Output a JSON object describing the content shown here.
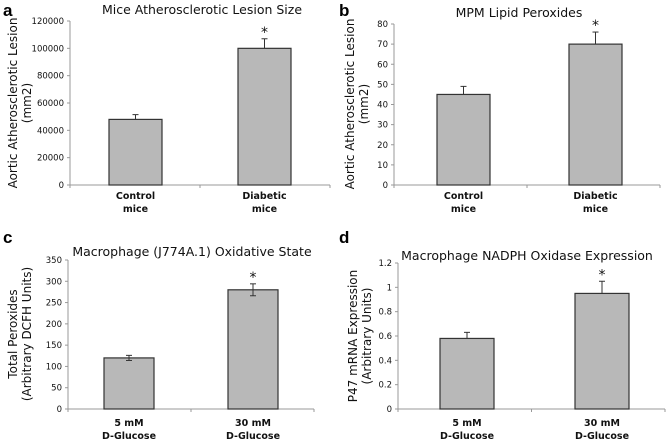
{
  "bar_color": "#b8b8b8",
  "bar_stroke": "#333333",
  "axis_color": "#999999",
  "chart_data": [
    {
      "type": "bar",
      "panel": "a",
      "title": "Mice Atherosclerotic Lesion Size",
      "ylabel_lines": [
        "Aortic Atherosclerotic Lesion",
        "(mm2)"
      ],
      "xlabel": "",
      "categories": [
        [
          "Control",
          "mice"
        ],
        [
          "Diabetic",
          "mice"
        ]
      ],
      "values": [
        48000,
        100000
      ],
      "errors": [
        3500,
        7000
      ],
      "error_style": "upper",
      "significance": [
        "",
        "*"
      ],
      "ylim": [
        0,
        120000
      ],
      "yticks": [
        0,
        20000,
        40000,
        60000,
        80000,
        100000,
        120000
      ],
      "ytick_labels": [
        "0",
        "20000",
        "40000",
        "60000",
        "80000",
        "100000",
        "120000"
      ],
      "grid": false
    },
    {
      "type": "bar",
      "panel": "b",
      "title": "MPM Lipid Peroxides",
      "ylabel_lines": [
        "Aortic Atherosclerotic Lesion",
        "(mm2)"
      ],
      "xlabel": "",
      "categories": [
        [
          "Control",
          "mice"
        ],
        [
          "Diabetic",
          "mice"
        ]
      ],
      "values": [
        45,
        70
      ],
      "errors": [
        4,
        6
      ],
      "error_style": "upper",
      "significance": [
        "",
        "*"
      ],
      "ylim": [
        0,
        80
      ],
      "yticks": [
        0,
        10,
        20,
        30,
        40,
        50,
        60,
        70,
        80
      ],
      "ytick_labels": [
        "0",
        "10",
        "20",
        "30",
        "40",
        "50",
        "60",
        "70",
        "80"
      ],
      "grid": false
    },
    {
      "type": "bar",
      "panel": "c",
      "title": "Macrophage (J774A.1) Oxidative State",
      "ylabel_lines": [
        "Total Peroxides",
        "(Arbitrary DCFH Units)"
      ],
      "xlabel": "",
      "categories": [
        [
          "5 mM",
          "D-Glucose"
        ],
        [
          "30 mM",
          "D-Glucose"
        ]
      ],
      "values": [
        120,
        280
      ],
      "errors": [
        6,
        14
      ],
      "error_style": "both",
      "significance": [
        "",
        "*"
      ],
      "ylim": [
        0,
        350
      ],
      "yticks": [
        0,
        50,
        100,
        150,
        200,
        250,
        300,
        350
      ],
      "ytick_labels": [
        "0",
        "50",
        "100",
        "150",
        "200",
        "250",
        "300",
        "350"
      ],
      "grid": false
    },
    {
      "type": "bar",
      "panel": "d",
      "title": "Macrophage NADPH Oxidase Expression",
      "ylabel_lines": [
        "P47 mRNA Expression",
        "(Arbitrary Units)"
      ],
      "xlabel": "",
      "categories": [
        [
          "5 mM",
          "D-Glucose"
        ],
        [
          "30 mM",
          "D-Glucose"
        ]
      ],
      "values": [
        0.58,
        0.95
      ],
      "errors": [
        0.05,
        0.1
      ],
      "error_style": "upper",
      "significance": [
        "",
        "*"
      ],
      "ylim": [
        0,
        1.2
      ],
      "yticks": [
        0,
        0.2,
        0.4,
        0.6,
        0.8,
        1.0,
        1.2
      ],
      "ytick_labels": [
        "0",
        "0.2",
        "0.4",
        "0.6",
        "0.8",
        "1",
        "1.2"
      ],
      "grid": false
    }
  ]
}
